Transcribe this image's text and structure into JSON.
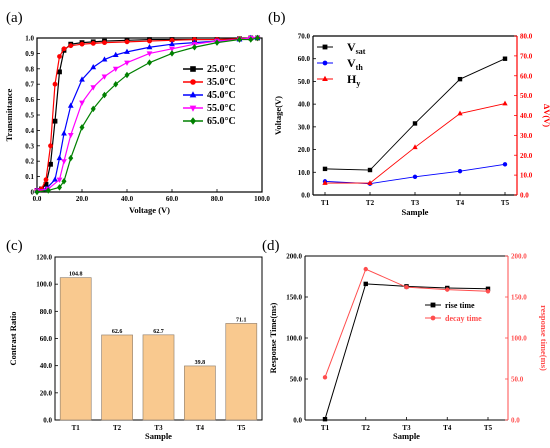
{
  "chart_data": [
    {
      "panel": "(a)",
      "type": "line",
      "xlabel": "Voltage (V)",
      "ylabel": "Transmittance",
      "xlim": [
        0,
        100
      ],
      "ylim": [
        0,
        1.0
      ],
      "xticks": [
        "0.0",
        "20.0",
        "40.0",
        "60.0",
        "80.0",
        "100.0"
      ],
      "yticks": [
        "0",
        "0.1",
        "0.2",
        "0.3",
        "0.4",
        "0.5",
        "0.6",
        "0.7",
        "0.8",
        "0.9",
        "1.0"
      ],
      "legend_position": "right",
      "series": [
        {
          "name": "25.0°C",
          "color": "#000000",
          "marker": "square",
          "x": [
            0,
            2,
            4,
            6,
            8,
            10,
            12,
            15,
            20,
            25,
            30,
            40,
            50,
            60,
            70,
            80,
            90,
            95,
            98
          ],
          "y": [
            0.01,
            0.02,
            0.05,
            0.18,
            0.46,
            0.78,
            0.92,
            0.96,
            0.97,
            0.975,
            0.98,
            0.985,
            0.99,
            0.99,
            0.99,
            0.99,
            0.995,
            1.0,
            1.0
          ]
        },
        {
          "name": "35.0°C",
          "color": "#ff0000",
          "marker": "circle",
          "x": [
            0,
            2,
            4,
            6,
            8,
            10,
            12,
            15,
            20,
            25,
            30,
            40,
            50,
            60,
            70,
            80,
            90,
            95,
            98
          ],
          "y": [
            0.01,
            0.02,
            0.08,
            0.3,
            0.7,
            0.88,
            0.93,
            0.95,
            0.96,
            0.965,
            0.97,
            0.975,
            0.98,
            0.985,
            0.99,
            0.99,
            0.995,
            1.0,
            1.0
          ]
        },
        {
          "name": "45.0°C",
          "color": "#0000ff",
          "marker": "triangle",
          "x": [
            0,
            4,
            8,
            10,
            12,
            15,
            20,
            25,
            30,
            35,
            40,
            50,
            60,
            70,
            80,
            90,
            95,
            98
          ],
          "y": [
            0.01,
            0.02,
            0.08,
            0.22,
            0.38,
            0.56,
            0.73,
            0.81,
            0.86,
            0.89,
            0.91,
            0.94,
            0.96,
            0.97,
            0.98,
            0.99,
            1.0,
            1.0
          ]
        },
        {
          "name": "55.0°C",
          "color": "#ff00ff",
          "marker": "triangle-down",
          "x": [
            0,
            5,
            10,
            12,
            15,
            20,
            25,
            30,
            35,
            40,
            50,
            60,
            70,
            80,
            90,
            95,
            98
          ],
          "y": [
            0.01,
            0.02,
            0.08,
            0.2,
            0.37,
            0.58,
            0.68,
            0.75,
            0.8,
            0.84,
            0.9,
            0.93,
            0.96,
            0.98,
            0.99,
            1.0,
            1.0
          ]
        },
        {
          "name": "65.0°C",
          "color": "#008000",
          "marker": "diamond",
          "x": [
            0,
            5,
            10,
            12,
            15,
            20,
            25,
            30,
            35,
            40,
            50,
            60,
            70,
            80,
            90,
            95,
            98
          ],
          "y": [
            0.0,
            0.01,
            0.03,
            0.07,
            0.22,
            0.42,
            0.54,
            0.63,
            0.7,
            0.76,
            0.84,
            0.9,
            0.94,
            0.97,
            0.99,
            0.99,
            1.0
          ]
        }
      ]
    },
    {
      "panel": "(b)",
      "type": "line",
      "categories": [
        "T1",
        "T2",
        "T3",
        "T4",
        "T5"
      ],
      "xlabel": "Sample",
      "ylabel": "Voltage(V)",
      "ylabel_right": "ΔV(V)",
      "ylim": [
        0,
        70
      ],
      "ylim_right": [
        0,
        80
      ],
      "yticks": [
        "0.0",
        "10.0",
        "20.0",
        "30.0",
        "40.0",
        "50.0",
        "60.0",
        "70.0"
      ],
      "yticks_right": [
        "0.0",
        "10.0",
        "20.0",
        "30.0",
        "40.0",
        "50.0",
        "60.0",
        "70.0",
        "80.0"
      ],
      "legend_position": "top-left",
      "series": [
        {
          "name": "V",
          "sub": "sat",
          "axis": "left",
          "color": "#000000",
          "marker": "square",
          "values": [
            11.5,
            11.0,
            31.5,
            51.0,
            60.0
          ]
        },
        {
          "name": "V",
          "sub": "th",
          "axis": "left",
          "color": "#0000ff",
          "marker": "circle",
          "values": [
            6.0,
            5.0,
            8.0,
            10.5,
            13.5
          ]
        },
        {
          "name": "H",
          "sub": "y",
          "axis": "right",
          "color": "#ff0000",
          "marker": "triangle",
          "values": [
            6.0,
            6.0,
            24.0,
            41.0,
            46.0
          ]
        }
      ]
    },
    {
      "panel": "(c)",
      "type": "bar",
      "categories": [
        "T1",
        "T2",
        "T3",
        "T4",
        "T5"
      ],
      "values": [
        104.8,
        62.6,
        62.7,
        39.8,
        71.1
      ],
      "value_labels": [
        "104.8",
        "62.6",
        "62.7",
        "39.8",
        "71.1"
      ],
      "xlabel": "Sample",
      "ylabel": "Contrast Ratio",
      "ylim": [
        0,
        120
      ],
      "yticks": [
        "0.0",
        "20.0",
        "40.0",
        "60.0",
        "80.0",
        "100.0",
        "120.0"
      ],
      "bar_color": "#f9c98f"
    },
    {
      "panel": "(d)",
      "type": "line",
      "categories": [
        "T1",
        "T2",
        "T3",
        "T4",
        "T5"
      ],
      "xlabel": "Sample",
      "ylabel": "Response Time(ms)",
      "ylabel_right": "response time(ms)",
      "ylim": [
        0,
        200
      ],
      "ylim_right": [
        0,
        200
      ],
      "yticks": [
        "0.0",
        "50.0",
        "100.0",
        "150.0",
        "200.0"
      ],
      "yticks_right": [
        "0.0",
        "50.0",
        "100.0",
        "150.0",
        "200.0"
      ],
      "legend_position": "right",
      "series": [
        {
          "name": "rise time",
          "axis": "left",
          "color": "#000000",
          "marker": "square",
          "values": [
            1,
            166,
            163,
            161,
            160
          ]
        },
        {
          "name": "decay time",
          "axis": "right",
          "color": "#ff4d4d",
          "marker": "circle",
          "values": [
            52,
            184,
            162,
            159,
            157
          ]
        }
      ]
    }
  ]
}
